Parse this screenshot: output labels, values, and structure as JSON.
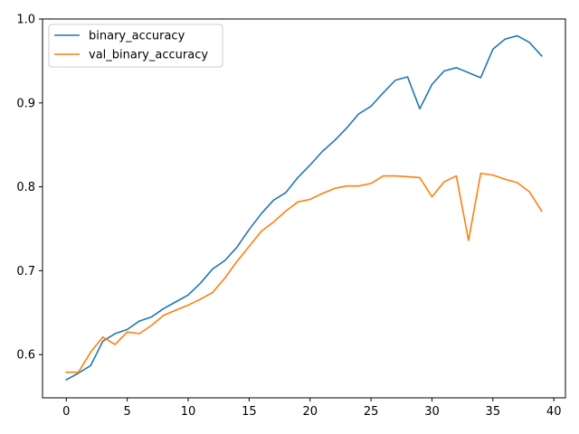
{
  "chart_data": {
    "type": "line",
    "title": "",
    "xlabel": "",
    "ylabel": "",
    "xlim": [
      -1.95,
      40.95
    ],
    "ylim": [
      0.5485,
      1.0
    ],
    "xticks": [
      0,
      5,
      10,
      15,
      20,
      25,
      30,
      35,
      40
    ],
    "yticks": [
      0.6,
      0.7,
      0.8,
      0.9,
      1.0
    ],
    "xtick_labels": [
      "0",
      "5",
      "10",
      "15",
      "20",
      "25",
      "30",
      "35",
      "40"
    ],
    "ytick_labels": [
      "0.6",
      "0.7",
      "0.8",
      "0.9",
      "1.0"
    ],
    "grid": false,
    "legend": "upper-left",
    "x": [
      0,
      1,
      2,
      3,
      4,
      5,
      6,
      7,
      8,
      9,
      10,
      11,
      12,
      13,
      14,
      15,
      16,
      17,
      18,
      19,
      20,
      21,
      22,
      23,
      24,
      25,
      26,
      27,
      28,
      29,
      30,
      31,
      32,
      33,
      34,
      35,
      36,
      37,
      38,
      39
    ],
    "series": [
      {
        "name": "binary_accuracy",
        "color": "#1f77b4",
        "values": [
          0.57,
          0.578,
          0.587,
          0.616,
          0.625,
          0.63,
          0.64,
          0.645,
          0.655,
          0.663,
          0.671,
          0.685,
          0.702,
          0.712,
          0.728,
          0.749,
          0.768,
          0.784,
          0.793,
          0.811,
          0.826,
          0.842,
          0.855,
          0.87,
          0.887,
          0.896,
          0.912,
          0.927,
          0.931,
          0.893,
          0.922,
          0.938,
          0.942,
          0.936,
          0.93,
          0.964,
          0.976,
          0.98,
          0.972,
          0.956
        ]
      },
      {
        "name": "val_binary_accuracy",
        "color": "#ff7f0e",
        "values": [
          0.579,
          0.579,
          0.603,
          0.621,
          0.612,
          0.627,
          0.625,
          0.635,
          0.647,
          0.653,
          0.659,
          0.666,
          0.674,
          0.691,
          0.711,
          0.729,
          0.747,
          0.758,
          0.771,
          0.782,
          0.785,
          0.792,
          0.798,
          0.801,
          0.801,
          0.804,
          0.813,
          0.813,
          0.812,
          0.811,
          0.788,
          0.806,
          0.813,
          0.736,
          0.816,
          0.814,
          0.809,
          0.805,
          0.794,
          0.771
        ]
      }
    ]
  }
}
